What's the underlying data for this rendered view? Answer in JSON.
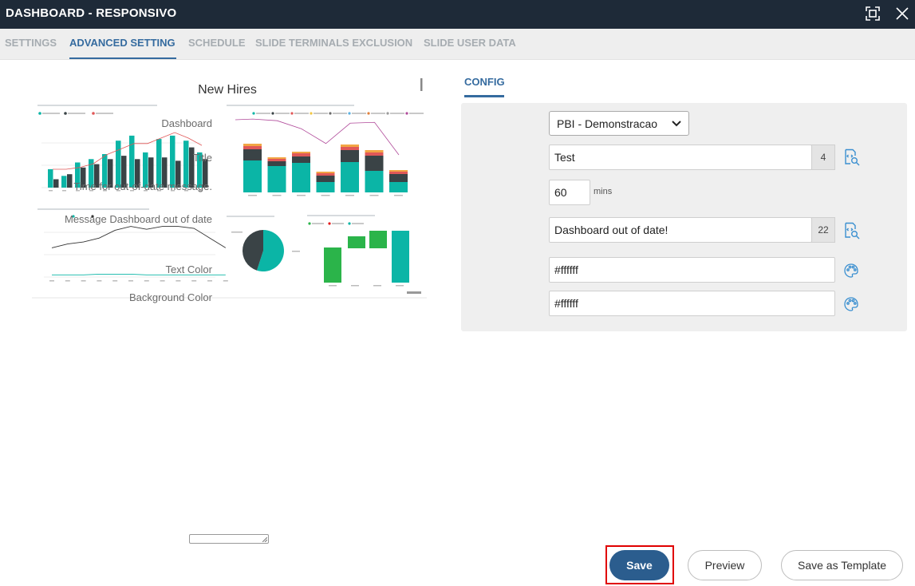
{
  "window": {
    "title": "DASHBOARD - RESPONSIVO",
    "maximize_icon": "maximize-icon",
    "close_icon": "close-icon"
  },
  "tabs": [
    {
      "label": "SETTINGS",
      "active": false
    },
    {
      "label": "ADVANCED SETTING",
      "active": true
    },
    {
      "label": "SCHEDULE",
      "active": false
    },
    {
      "label": "SLIDE TERMINALS EXCLUSION",
      "active": false
    },
    {
      "label": "SLIDE USER DATA",
      "active": false
    }
  ],
  "preview": {
    "title": "New Hires",
    "bar_chart": {
      "type": "bar",
      "series": [
        {
          "name": "New Hire Count",
          "color": "#0bb5a6",
          "values": [
            11,
            7,
            15,
            17,
            20,
            28,
            31,
            21,
            29,
            31,
            28,
            21
          ]
        },
        {
          "name": "New Hires SPLY",
          "color": "#3a4346",
          "values": [
            5,
            8,
            12,
            14,
            17,
            19,
            17,
            18,
            18,
            16,
            24,
            17
          ]
        }
      ],
      "line": {
        "name": "Actives YoY % Change",
        "color": "#e05858",
        "values": [
          10,
          10,
          11,
          13,
          18,
          21,
          24,
          24,
          27,
          30,
          27,
          23
        ]
      },
      "categories": [
        "Jan",
        "Feb",
        "Mar",
        "Apr",
        "May",
        "Jun",
        "Jul",
        "Aug",
        "Sep",
        "Oct",
        "Nov",
        "Dec"
      ]
    },
    "stacked_chart": {
      "categories": [
        "North",
        "Midwest",
        "Northeast",
        "East",
        "Central",
        "South",
        "West"
      ],
      "line_values": [
        92,
        90,
        80,
        62,
        87,
        88,
        48
      ]
    },
    "line_chart": {
      "categories": [
        "Jan",
        "Feb",
        "Mar",
        "Apr",
        "May",
        "Jun",
        "Jul",
        "Aug",
        "Sep",
        "Oct",
        "Nov",
        "Dec"
      ],
      "full_time": [
        30,
        34,
        36,
        40,
        48,
        52,
        49,
        52,
        52,
        50,
        40,
        30
      ],
      "part_time": [
        3,
        3,
        3,
        4,
        4,
        4,
        3,
        3,
        3,
        3,
        3,
        3
      ]
    },
    "pie": {
      "values": [
        55,
        45
      ],
      "colors": [
        "#0bb5a6",
        "#3a4346"
      ]
    },
    "waterfall": {
      "categories": [
        "<30",
        "30-49",
        "50+",
        "Total"
      ],
      "legend_colors": [
        "#2bb44a",
        "#e31a1c",
        "#0bb5a6"
      ]
    }
  },
  "config": {
    "tab_label": "CONFIG",
    "dashboard": {
      "label": "Dashboard",
      "value": "PBI - Demonstracao"
    },
    "title": {
      "label": "Title",
      "value": "Test",
      "count": "4"
    },
    "time": {
      "label": "Time for out-of-date message.",
      "value": "60",
      "unit": "mins"
    },
    "message": {
      "label": "Message Dashboard out of date",
      "value": "Dashboard out of date!",
      "count": "22"
    },
    "text_color": {
      "label": "Text Color",
      "value": "#ffffff"
    },
    "background_color": {
      "label": "Background Color",
      "value": "#ffffff"
    }
  },
  "buttons": {
    "save": "Save",
    "preview": "Preview",
    "save_template": "Save as Template"
  },
  "colors": {
    "accent": "#356b9f",
    "titlebar": "#1e2a38",
    "save_button": "#2b5d8e",
    "highlight": "#e00000"
  }
}
